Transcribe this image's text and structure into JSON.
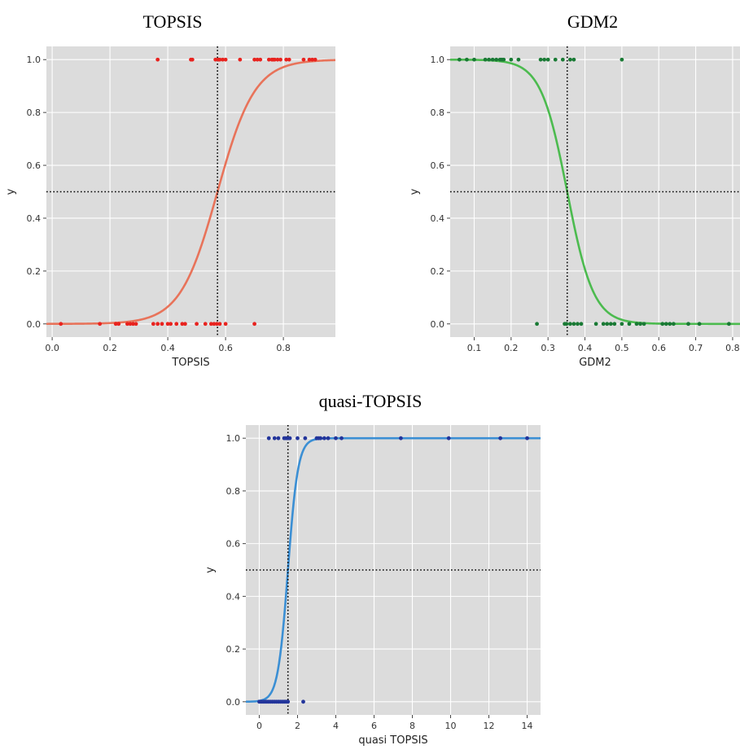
{
  "chart_data": [
    {
      "type": "scatter",
      "title": "TOPSIS",
      "xlabel": "TOPSIS",
      "ylabel": "y",
      "xlim": [
        -0.02,
        0.98
      ],
      "ylim": [
        -0.05,
        1.05
      ],
      "xticks": [
        0.0,
        0.2,
        0.4,
        0.6,
        0.8
      ],
      "xtick_labels": [
        "0.0",
        "0.2",
        "0.4",
        "0.6",
        "0.8"
      ],
      "yticks": [
        0.0,
        0.2,
        0.4,
        0.6,
        0.8,
        1.0
      ],
      "ytick_labels": [
        "0.0",
        "0.2",
        "0.4",
        "0.6",
        "0.8",
        "1.0"
      ],
      "grid": true,
      "threshold_x": 0.572,
      "threshold_y": 0.5,
      "curve": {
        "kind": "logistic",
        "x0": 0.572,
        "k": 15.5,
        "color": "#e8735a"
      },
      "point_color": "#e8231f",
      "points_y1": [
        0.365,
        0.48,
        0.485,
        0.565,
        0.575,
        0.58,
        0.59,
        0.6,
        0.65,
        0.7,
        0.71,
        0.72,
        0.75,
        0.76,
        0.765,
        0.77,
        0.78,
        0.79,
        0.81,
        0.82,
        0.87,
        0.89,
        0.9,
        0.91
      ],
      "points_y0": [
        0.03,
        0.165,
        0.22,
        0.23,
        0.26,
        0.27,
        0.28,
        0.29,
        0.35,
        0.365,
        0.38,
        0.4,
        0.41,
        0.43,
        0.45,
        0.46,
        0.5,
        0.53,
        0.55,
        0.56,
        0.57,
        0.58,
        0.6,
        0.7
      ]
    },
    {
      "type": "scatter",
      "title": "GDM2",
      "xlabel": "GDM2",
      "ylabel": "y",
      "xlim": [
        0.035,
        0.82
      ],
      "ylim": [
        -0.05,
        1.05
      ],
      "xticks": [
        0.1,
        0.2,
        0.3,
        0.4,
        0.5,
        0.6,
        0.7,
        0.8
      ],
      "xtick_labels": [
        "0.1",
        "0.2",
        "0.3",
        "0.4",
        "0.5",
        "0.6",
        "0.7",
        "0.8"
      ],
      "yticks": [
        0.0,
        0.2,
        0.4,
        0.6,
        0.8,
        1.0
      ],
      "ytick_labels": [
        "0.0",
        "0.2",
        "0.4",
        "0.6",
        "0.8",
        "1.0"
      ],
      "grid": true,
      "threshold_x": 0.352,
      "threshold_y": 0.5,
      "curve": {
        "kind": "logistic",
        "x0": 0.352,
        "k": -28,
        "color": "#4cbb4f"
      },
      "point_color": "#1a7a35",
      "points_y1": [
        0.06,
        0.08,
        0.1,
        0.13,
        0.14,
        0.15,
        0.16,
        0.17,
        0.175,
        0.18,
        0.2,
        0.22,
        0.28,
        0.29,
        0.3,
        0.32,
        0.34,
        0.36,
        0.37,
        0.5
      ],
      "points_y0": [
        0.27,
        0.345,
        0.35,
        0.36,
        0.37,
        0.38,
        0.39,
        0.43,
        0.45,
        0.46,
        0.47,
        0.48,
        0.5,
        0.52,
        0.54,
        0.55,
        0.56,
        0.61,
        0.62,
        0.63,
        0.64,
        0.68,
        0.71,
        0.79
      ]
    },
    {
      "type": "scatter",
      "title": "quasi-TOPSIS",
      "xlabel": "quasi TOPSIS",
      "ylabel": "y",
      "xlim": [
        -0.7,
        14.7
      ],
      "ylim": [
        -0.05,
        1.05
      ],
      "xticks": [
        0,
        2,
        4,
        6,
        8,
        10,
        12,
        14
      ],
      "xtick_labels": [
        "0",
        "2",
        "4",
        "6",
        "8",
        "10",
        "12",
        "14"
      ],
      "yticks": [
        0.0,
        0.2,
        0.4,
        0.6,
        0.8,
        1.0
      ],
      "ytick_labels": [
        "0.0",
        "0.2",
        "0.4",
        "0.6",
        "0.8",
        "1.0"
      ],
      "grid": true,
      "threshold_x": 1.5,
      "threshold_y": 0.5,
      "curve": {
        "kind": "logistic",
        "x0": 1.5,
        "k": 3.8,
        "color": "#3b8fd4"
      },
      "point_color": "#23359b",
      "points_y1": [
        0.5,
        0.8,
        1.0,
        1.3,
        1.4,
        1.5,
        1.6,
        2.0,
        2.4,
        3.0,
        3.1,
        3.2,
        3.4,
        3.6,
        4.0,
        4.3,
        7.4,
        9.9,
        12.6,
        14.0
      ],
      "points_y0": [
        0.0,
        0.1,
        0.2,
        0.3,
        0.4,
        0.5,
        0.6,
        0.7,
        0.8,
        0.9,
        1.0,
        1.1,
        1.2,
        1.3,
        1.4,
        1.5,
        2.3
      ]
    }
  ]
}
